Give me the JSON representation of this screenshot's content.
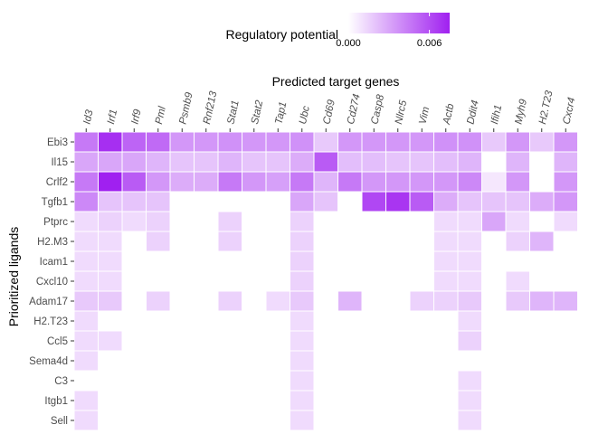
{
  "chart_data": {
    "type": "heatmap",
    "title": "",
    "xlabel": "Predicted target genes",
    "ylabel": "Prioritized ligands",
    "x": [
      "Id3",
      "Irf1",
      "Irf9",
      "Pml",
      "Psmb9",
      "Rnf213",
      "Stat1",
      "Stat2",
      "Tap1",
      "Ubc",
      "Cd69",
      "Cd274",
      "Casp8",
      "Nlrc5",
      "Vim",
      "Actb",
      "Ddit4",
      "Ifih1",
      "Myh9",
      "H2.T23",
      "Cxcr4"
    ],
    "y": [
      "Ebi3",
      "Il15",
      "Crlf2",
      "Tgfb1",
      "Ptprc",
      "H2.M3",
      "Icam1",
      "Cxcl10",
      "Adam17",
      "H2.T23",
      "Ccl5",
      "Sema4d",
      "C3",
      "Itgb1",
      "Sell"
    ],
    "values": [
      [
        0.0045,
        0.007,
        0.0052,
        0.005,
        0.0035,
        0.0035,
        0.0037,
        0.0035,
        0.0035,
        0.0037,
        0.0018,
        0.0035,
        0.0035,
        0.0035,
        0.0035,
        0.0037,
        0.0037,
        0.0018,
        0.0035,
        0.0018,
        0.0035
      ],
      [
        0.003,
        0.003,
        0.003,
        0.0025,
        0.002,
        0.002,
        0.0025,
        0.002,
        0.002,
        0.0028,
        0.0055,
        0.0022,
        0.0022,
        0.002,
        0.002,
        0.0022,
        0.0025,
        null,
        0.0025,
        null,
        0.0025
      ],
      [
        0.0045,
        0.0075,
        0.0055,
        0.0035,
        0.0028,
        0.0028,
        0.0045,
        0.0035,
        0.0032,
        0.0045,
        0.0025,
        0.0045,
        0.0035,
        0.0035,
        0.0035,
        0.0035,
        0.004,
        0.0008,
        0.0035,
        null,
        0.0035
      ],
      [
        0.004,
        0.002,
        0.002,
        0.002,
        null,
        null,
        null,
        null,
        null,
        0.003,
        0.002,
        null,
        0.0062,
        0.0068,
        0.0055,
        0.0028,
        0.002,
        0.002,
        0.002,
        0.0028,
        0.0035
      ],
      [
        0.0012,
        0.0015,
        0.0012,
        0.0015,
        null,
        null,
        0.0015,
        null,
        null,
        0.0015,
        null,
        null,
        null,
        null,
        null,
        0.0012,
        0.0012,
        0.003,
        0.0012,
        null,
        0.0012
      ],
      [
        0.0012,
        0.0012,
        null,
        0.0015,
        null,
        null,
        0.0015,
        null,
        null,
        0.0015,
        null,
        null,
        null,
        null,
        null,
        0.0012,
        0.0012,
        null,
        0.0015,
        0.0025,
        null
      ],
      [
        0.0012,
        0.0012,
        null,
        null,
        null,
        null,
        null,
        null,
        null,
        0.0015,
        null,
        null,
        null,
        null,
        null,
        0.0012,
        0.0012,
        null,
        null,
        null,
        null
      ],
      [
        0.0012,
        0.0012,
        null,
        null,
        null,
        null,
        null,
        null,
        null,
        0.0015,
        null,
        null,
        null,
        null,
        null,
        0.0012,
        0.0012,
        null,
        0.0012,
        null,
        null
      ],
      [
        0.0018,
        0.0018,
        null,
        0.0015,
        null,
        null,
        0.0015,
        null,
        0.0012,
        0.0018,
        null,
        0.0025,
        null,
        null,
        0.0015,
        0.0015,
        0.0018,
        null,
        0.0018,
        0.0025,
        0.0025
      ],
      [
        0.0012,
        null,
        null,
        null,
        null,
        null,
        null,
        null,
        null,
        0.0012,
        null,
        null,
        null,
        null,
        null,
        null,
        0.0012,
        null,
        null,
        null,
        null
      ],
      [
        0.0012,
        0.0012,
        null,
        null,
        null,
        null,
        null,
        null,
        null,
        0.0012,
        null,
        null,
        null,
        null,
        null,
        null,
        0.0015,
        null,
        null,
        null,
        null
      ],
      [
        0.0012,
        null,
        null,
        null,
        null,
        null,
        null,
        null,
        null,
        0.0012,
        null,
        null,
        null,
        null,
        null,
        null,
        null,
        null,
        null,
        null,
        null
      ],
      [
        null,
        null,
        null,
        null,
        null,
        null,
        null,
        null,
        null,
        0.0012,
        null,
        null,
        null,
        null,
        null,
        null,
        0.0012,
        null,
        null,
        null,
        null
      ],
      [
        0.0012,
        null,
        null,
        null,
        null,
        null,
        null,
        null,
        null,
        0.0012,
        null,
        null,
        null,
        null,
        null,
        null,
        0.0012,
        null,
        null,
        null,
        null
      ],
      [
        0.0012,
        null,
        null,
        null,
        null,
        null,
        null,
        null,
        null,
        0.0012,
        null,
        null,
        null,
        null,
        null,
        null,
        0.0012,
        null,
        null,
        null,
        null
      ]
    ],
    "legend": {
      "title": "Regulatory potential",
      "ticks": [
        "0.000",
        "0.006"
      ],
      "tick_values": [
        0.0,
        0.006
      ],
      "range": [
        0.0,
        0.0075
      ],
      "placement": "top"
    },
    "colors": {
      "low": "#ffffff",
      "high": "#a020f0",
      "cell_border": "#ffffff"
    },
    "grid": false
  }
}
